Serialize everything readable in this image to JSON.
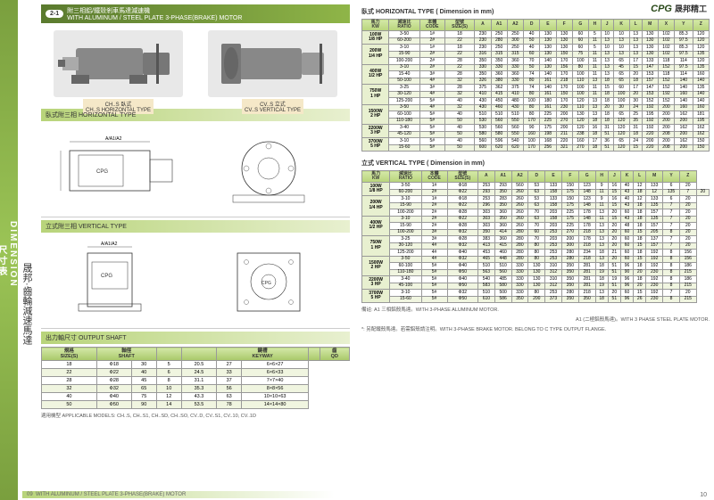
{
  "brand": {
    "logo": "CPG",
    "name": "晟邦精工"
  },
  "sidebar": {
    "en": "DIMENSION",
    "cn": "尺寸表",
    "vertical": "晟邦·齒輪減速馬達"
  },
  "header": {
    "num": "2-1",
    "title_cn": "附三相鋁/鐵殼剎車馬達減速機",
    "title_en": "WITH ALUMINUM / STEEL PLATE 3-PHASE(BRAKE) MOTOR"
  },
  "motor_labels": {
    "left_cn": "CH..S 臥式",
    "left_en": "CH..S HORIZONTAL TYPE",
    "right_cn": "CV..S 立式",
    "right_en": "CV..S VERTICAL TYPE"
  },
  "sections": {
    "horizontal": "臥式附三相 HORIZONTAL TYPE",
    "vertical": "立式附三相 VERTICAL TYPE",
    "shaft": "出力軸尺寸 OUTPUT SHAFT"
  },
  "shaft_table": {
    "headers": [
      "規格\nSIZE(S)",
      "軸徑\nSHAFT",
      "",
      "",
      "鍵槽\nKEYWAY",
      "",
      "齒\nQD"
    ],
    "sub": [
      "",
      "D",
      "W",
      "",
      "",
      "Q",
      ""
    ],
    "rows": [
      [
        "18",
        "Φ18",
        "30",
        "5",
        "20.5",
        "27",
        "6×6×27"
      ],
      [
        "22",
        "Φ22",
        "40",
        "6",
        "24.5",
        "33",
        "6×6×33"
      ],
      [
        "28",
        "Φ28",
        "45",
        "8",
        "31.1",
        "37",
        "7×7×40"
      ],
      [
        "32",
        "Φ32",
        "65",
        "10",
        "35.3",
        "56",
        "8×8×56"
      ],
      [
        "40",
        "Φ40",
        "75",
        "12",
        "43.3",
        "63",
        "10×10×63"
      ],
      [
        "50",
        "Φ50",
        "90",
        "14",
        "53.5",
        "78",
        "14×14×80"
      ]
    ]
  },
  "shaft_note": "適用機型 APPLICABLE MODELS: CH..S, CH..S1, CH..SD, CH..SO, CV..D, CV..S1, CV..10, CV..1D",
  "right_section1": {
    "title": "臥式 HORIZONTAL TYPE ( Dimension in mm)"
  },
  "horiz_headers": [
    "馬力\nKW",
    "減速比\nRATIO",
    "本體\nCODE",
    "型號\nSIZE(S)",
    "A",
    "A1",
    "A2",
    "D",
    "E",
    "F",
    "G",
    "H",
    "J",
    "K",
    "L",
    "M",
    "X",
    "Y",
    "Z"
  ],
  "horiz_rows": [
    {
      "power": "100W\n1/8 HP",
      "data": [
        [
          "3-50",
          "1#",
          "18",
          "230",
          "250",
          "250",
          "40",
          "130",
          "130",
          "60",
          "5",
          "10",
          "10",
          "13",
          "130",
          "102",
          "85.3",
          "120"
        ],
        [
          "60-200",
          "2#",
          "22",
          "230",
          "280",
          "300",
          "50",
          "130",
          "130",
          "60",
          "11",
          "13",
          "13",
          "13",
          "130",
          "102",
          "97.5",
          "120"
        ]
      ]
    },
    {
      "power": "200W\n1/4 HP",
      "data": [
        [
          "3-10",
          "1#",
          "18",
          "230",
          "250",
          "250",
          "40",
          "130",
          "130",
          "60",
          "5",
          "10",
          "10",
          "13",
          "130",
          "102",
          "85.3",
          "120"
        ],
        [
          "15-90",
          "2#",
          "22",
          "316",
          "315",
          "315",
          "60",
          "130",
          "150",
          "75",
          "11",
          "13",
          "13",
          "13",
          "130",
          "102",
          "97.5",
          "135"
        ],
        [
          "100-200",
          "2#",
          "28",
          "350",
          "350",
          "360",
          "70",
          "140",
          "170",
          "100",
          "11",
          "13",
          "65",
          "17",
          "133",
          "118",
          "114",
          "120"
        ]
      ]
    },
    {
      "power": "400W\n1/2 HP",
      "data": [
        [
          "3-10",
          "2#",
          "22",
          "330",
          "330",
          "330",
          "50",
          "130",
          "156",
          "80",
          "11",
          "13",
          "45",
          "15",
          "147",
          "152",
          "97.5",
          "135"
        ],
        [
          "15-40",
          "3#",
          "28",
          "350",
          "360",
          "360",
          "74",
          "140",
          "170",
          "100",
          "11",
          "13",
          "65",
          "20",
          "153",
          "118",
          "114",
          "160"
        ],
        [
          "50-100",
          "4#",
          "32",
          "326",
          "380",
          "330",
          "80",
          "161",
          "218",
          "110",
          "13",
          "18",
          "65",
          "18",
          "157",
          "152",
          "140",
          "140"
        ]
      ]
    },
    {
      "power": "750W\n1 HP",
      "data": [
        [
          "3-25",
          "3#",
          "28",
          "375",
          "362",
          "375",
          "74",
          "140",
          "170",
          "100",
          "11",
          "15",
          "60",
          "17",
          "147",
          "152",
          "140",
          "135"
        ],
        [
          "30-120",
          "4#",
          "32",
          "410",
          "415",
          "410",
          "80",
          "161",
          "150",
          "100",
          "11",
          "18",
          "100",
          "20",
          "153",
          "192",
          "160",
          "140"
        ],
        [
          "125-200",
          "5#",
          "40",
          "430",
          "450",
          "480",
          "100",
          "180",
          "170",
          "120",
          "13",
          "18",
          "100",
          "30",
          "152",
          "152",
          "140",
          "140"
        ]
      ]
    },
    {
      "power": "1500W\n2 HP",
      "data": [
        [
          "3-50",
          "4#",
          "32",
          "430",
          "460",
          "430",
          "80",
          "161",
          "230",
          "110",
          "13",
          "20",
          "30",
          "24",
          "192",
          "200",
          "160",
          "160"
        ],
        [
          "60-100",
          "5#",
          "40",
          "510",
          "510",
          "510",
          "80",
          "225",
          "200",
          "130",
          "13",
          "18",
          "65",
          "25",
          "195",
          "200",
          "162",
          "181"
        ],
        [
          "110-180",
          "5#",
          "50",
          "530",
          "560",
          "550",
          "170",
          "225",
          "270",
          "120",
          "18",
          "18",
          "120",
          "35",
          "192",
          "200",
          "200",
          "195"
        ]
      ]
    },
    {
      "power": "2200W\n3 HP",
      "data": [
        [
          "3-40",
          "5#",
          "40",
          "530",
          "560",
          "560",
          "90",
          "175",
          "200",
          "120",
          "16",
          "31",
          "120",
          "31",
          "192",
          "200",
          "162",
          "162"
        ],
        [
          "45-120",
          "5#",
          "50",
          "580",
          "580",
          "550",
          "160",
          "198",
          "211",
          "238",
          "18",
          "51",
          "120",
          "18",
          "220",
          "208",
          "200",
          "162"
        ]
      ]
    },
    {
      "power": "3700W\n5 HP",
      "data": [
        [
          "3-10",
          "5#",
          "40",
          "560",
          "596",
          "540",
          "100",
          "168",
          "220",
          "160",
          "17",
          "36",
          "65",
          "24",
          "200",
          "200",
          "162",
          "150"
        ],
        [
          "15-60",
          "5#",
          "50",
          "600",
          "620",
          "620",
          "170",
          "256",
          "321",
          "270",
          "18",
          "51",
          "120",
          "15",
          "220",
          "208",
          "200",
          "150"
        ]
      ]
    }
  ],
  "right_section2": {
    "title": "立式 VERTICAL TYPE ( Dimension in mm)"
  },
  "vert_headers": [
    "馬力\nKW",
    "減速比\nRATIO",
    "本體\nCODE",
    "型號\nSIZE(S)",
    "A",
    "A1",
    "A2",
    "D",
    "E",
    "F",
    "G",
    "H",
    "J",
    "K",
    "L",
    "M",
    "Y",
    "Z"
  ],
  "vert_rows": [
    {
      "power": "100W\n1/8 HP",
      "data": [
        [
          "3-50",
          "1#",
          "Φ18",
          "253",
          "293",
          "560",
          "53",
          "133",
          "150",
          "123",
          "9",
          "16",
          "40",
          "12",
          "133",
          "6",
          "20"
        ],
        [
          "60-200",
          "2#",
          "Φ22",
          "293",
          "350",
          "260",
          "63",
          "158",
          "175",
          "148",
          "11",
          "15",
          "43",
          "18",
          "12",
          "135",
          "7",
          "20"
        ]
      ]
    },
    {
      "power": "200W\n1/4 HP",
      "data": [
        [
          "3-10",
          "1#",
          "Φ18",
          "253",
          "283",
          "260",
          "53",
          "133",
          "150",
          "123",
          "9",
          "16",
          "40",
          "12",
          "133",
          "6",
          "20"
        ],
        [
          "15-90",
          "2#",
          "Φ22",
          "296",
          "350",
          "260",
          "63",
          "158",
          "175",
          "148",
          "11",
          "15",
          "43",
          "18",
          "135",
          "7",
          "20"
        ],
        [
          "100-200",
          "2#",
          "Φ28",
          "303",
          "360",
          "260",
          "70",
          "203",
          "225",
          "178",
          "13",
          "20",
          "60",
          "18",
          "157",
          "7",
          "20"
        ]
      ]
    },
    {
      "power": "400W\n1/2 HP",
      "data": [
        [
          "3-10",
          "2#",
          "Φ22",
          "303",
          "350",
          "260",
          "63",
          "158",
          "175",
          "148",
          "11",
          "15",
          "43",
          "18",
          "135",
          "7",
          "20"
        ],
        [
          "15-90",
          "2#",
          "Φ28",
          "303",
          "360",
          "260",
          "70",
          "203",
          "225",
          "178",
          "13",
          "20",
          "48",
          "18",
          "157",
          "7",
          "20"
        ],
        [
          "100-200",
          "3#",
          "Φ32",
          "350",
          "414",
          "280",
          "60",
          "253",
          "270",
          "218",
          "13",
          "20",
          "60",
          "15",
          "205",
          "8",
          "20"
        ]
      ]
    },
    {
      "power": "750W\n1 HP",
      "data": [
        [
          "3-25",
          "3#",
          "Φ28",
          "383",
          "360",
          "280",
          "70",
          "203",
          "200",
          "178",
          "13",
          "20",
          "60",
          "18",
          "137",
          "7",
          "20"
        ],
        [
          "30-120",
          "4#",
          "Φ32",
          "413",
          "415",
          "280",
          "80",
          "253",
          "300",
          "218",
          "13",
          "20",
          "60",
          "15",
          "157",
          "7",
          "20"
        ],
        [
          "125-200",
          "4#",
          "Φ40",
          "453",
          "460",
          "280",
          "80",
          "253",
          "280",
          "234",
          "18",
          "21",
          "60",
          "18",
          "192",
          "8",
          "156"
        ]
      ]
    },
    {
      "power": "1500W\n2 HP",
      "data": [
        [
          "3-50",
          "4#",
          "Φ32",
          "465",
          "448",
          "280",
          "80",
          "253",
          "280",
          "218",
          "13",
          "20",
          "60",
          "15",
          "192",
          "8",
          "156"
        ],
        [
          "60-100",
          "5#",
          "Φ40",
          "510",
          "510",
          "330",
          "130",
          "310",
          "350",
          "281",
          "18",
          "51",
          "96",
          "18",
          "192",
          "8",
          "186"
        ],
        [
          "110-180",
          "5#",
          "Φ50",
          "563",
          "560",
          "330",
          "130",
          "312",
          "350",
          "281",
          "19",
          "51",
          "90",
          "20",
          "230",
          "8",
          "215"
        ]
      ]
    },
    {
      "power": "2200W\n3 HP",
      "data": [
        [
          "3-40",
          "5#",
          "Φ40",
          "540",
          "485",
          "330",
          "130",
          "310",
          "350",
          "281",
          "18",
          "19",
          "96",
          "18",
          "192",
          "8",
          "186"
        ],
        [
          "45-100",
          "5#",
          "Φ50",
          "583",
          "580",
          "330",
          "130",
          "312",
          "350",
          "281",
          "19",
          "51",
          "96",
          "20",
          "230",
          "8",
          "215"
        ]
      ]
    },
    {
      "power": "3700W\n5 HP",
      "data": [
        [
          "3-10",
          "5#",
          "Φ32",
          "510",
          "500",
          "330",
          "80",
          "253",
          "280",
          "218",
          "13",
          "20",
          "60",
          "15",
          "192",
          "7",
          "20"
        ],
        [
          "15-60",
          "5#",
          "Φ50",
          "610",
          "586",
          "350",
          "200",
          "373",
          "350",
          "350",
          "18",
          "51",
          "96",
          "26",
          "230",
          "8",
          "215"
        ]
      ]
    }
  ],
  "footnotes": {
    "a": "備註: A1 三相鋁殼馬達。WITH 3-PHASE ALUMINUM MOTOR.",
    "b": "A1 (二極鋁殼馬達)。WITH 3 PHASE STEEL PLATE MOTOR.",
    "c": "*: 另配鐵殼馬達。若需鋁殼請注明。WITH 3-PHASE BRAKE MOTOR. BELONG TO C TYPE OUTPUT FLANGE."
  },
  "footer": {
    "text": "WITH ALUMINUM / STEEL PLATE 3-PHASE(BRAKE) MOTOR",
    "page_l": "09",
    "page_r": "10"
  }
}
